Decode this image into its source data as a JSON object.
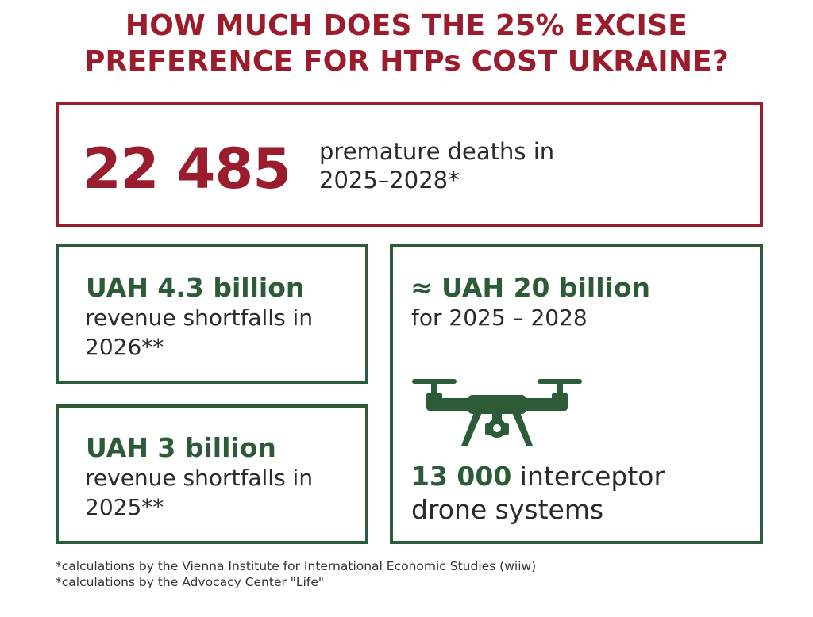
{
  "title": {
    "line1": "HOW MUCH DOES THE 25% EXCISE",
    "line2": "PREFERENCE FOR HTPs COST UKRAINE?"
  },
  "deaths": {
    "number": "22 485",
    "text": "premature deaths in 2025–2028*"
  },
  "shortfall_2026": {
    "headline": "UAH 4.3 billion",
    "text": "revenue shortfalls in 2026**"
  },
  "shortfall_2025": {
    "headline": "UAH 3 billion",
    "text": "revenue shortfalls in 2025**"
  },
  "total": {
    "headline": "≈ UAH 20 billion",
    "text": "for 2025 – 2028",
    "drone_icon": "drone-icon",
    "drones_number": "13 000",
    "drones_text": "interceptor drone systems"
  },
  "footnotes": [
    "*calculations by the Vienna Institute for International Economic Studies (wiiw)",
    "*calculations by the Advocacy Center \"Life\""
  ],
  "colors": {
    "red": "#9b1c2c",
    "green": "#2e5b37",
    "text": "#2b2b2b"
  }
}
